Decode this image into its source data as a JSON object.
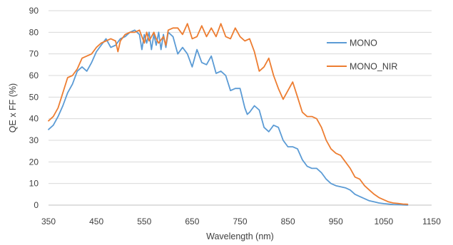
{
  "chart_data": {
    "type": "line",
    "title": "",
    "xlabel": "Wavelength (nm)",
    "ylabel": "QE x FF (%)",
    "xlim": [
      350,
      1150
    ],
    "ylim": [
      0,
      90
    ],
    "x_ticks": [
      350,
      450,
      550,
      650,
      750,
      850,
      950,
      1050,
      1150
    ],
    "y_ticks": [
      0,
      10,
      20,
      30,
      40,
      50,
      60,
      70,
      80,
      90
    ],
    "grid": "horizontal",
    "legend_position": "right",
    "series": [
      {
        "name": "MONO",
        "color": "#5b9bd5",
        "points": [
          [
            350,
            35
          ],
          [
            360,
            37
          ],
          [
            370,
            41
          ],
          [
            380,
            46
          ],
          [
            390,
            52
          ],
          [
            400,
            56
          ],
          [
            410,
            62
          ],
          [
            420,
            64
          ],
          [
            430,
            62
          ],
          [
            440,
            66
          ],
          [
            450,
            71
          ],
          [
            460,
            74
          ],
          [
            470,
            77
          ],
          [
            480,
            73
          ],
          [
            490,
            74
          ],
          [
            500,
            77
          ],
          [
            510,
            78
          ],
          [
            520,
            80
          ],
          [
            530,
            81
          ],
          [
            540,
            79
          ],
          [
            545,
            72
          ],
          [
            550,
            79
          ],
          [
            555,
            75
          ],
          [
            560,
            80
          ],
          [
            565,
            72
          ],
          [
            570,
            79
          ],
          [
            575,
            74
          ],
          [
            580,
            80
          ],
          [
            585,
            72
          ],
          [
            590,
            79
          ],
          [
            595,
            73
          ],
          [
            600,
            80
          ],
          [
            610,
            78
          ],
          [
            620,
            70
          ],
          [
            630,
            73
          ],
          [
            640,
            70
          ],
          [
            650,
            64
          ],
          [
            660,
            72
          ],
          [
            670,
            66
          ],
          [
            680,
            65
          ],
          [
            690,
            69
          ],
          [
            700,
            61
          ],
          [
            710,
            62
          ],
          [
            720,
            60
          ],
          [
            730,
            53
          ],
          [
            740,
            54
          ],
          [
            750,
            54
          ],
          [
            760,
            45
          ],
          [
            765,
            42
          ],
          [
            770,
            43
          ],
          [
            780,
            46
          ],
          [
            790,
            44
          ],
          [
            800,
            36
          ],
          [
            810,
            34
          ],
          [
            820,
            37
          ],
          [
            830,
            36
          ],
          [
            840,
            30
          ],
          [
            850,
            27
          ],
          [
            860,
            27
          ],
          [
            870,
            26
          ],
          [
            880,
            21
          ],
          [
            890,
            18
          ],
          [
            900,
            17
          ],
          [
            910,
            17
          ],
          [
            920,
            15
          ],
          [
            930,
            12
          ],
          [
            940,
            10
          ],
          [
            950,
            9
          ],
          [
            960,
            8.5
          ],
          [
            970,
            8
          ],
          [
            980,
            7
          ],
          [
            990,
            5
          ],
          [
            1000,
            4
          ],
          [
            1010,
            3
          ],
          [
            1020,
            2
          ],
          [
            1030,
            1.5
          ],
          [
            1040,
            1
          ],
          [
            1050,
            0.7
          ],
          [
            1060,
            0.5
          ],
          [
            1070,
            0.3
          ],
          [
            1080,
            0.2
          ],
          [
            1090,
            0.1
          ],
          [
            1100,
            0
          ]
        ]
      },
      {
        "name": "MONO_NIR",
        "color": "#ed7d31",
        "points": [
          [
            350,
            39
          ],
          [
            360,
            41
          ],
          [
            370,
            45
          ],
          [
            380,
            52
          ],
          [
            390,
            59
          ],
          [
            400,
            60
          ],
          [
            410,
            63
          ],
          [
            420,
            68
          ],
          [
            430,
            69
          ],
          [
            440,
            70
          ],
          [
            450,
            73
          ],
          [
            460,
            75
          ],
          [
            470,
            76
          ],
          [
            480,
            77
          ],
          [
            490,
            76
          ],
          [
            495,
            71
          ],
          [
            500,
            76
          ],
          [
            510,
            79
          ],
          [
            520,
            80
          ],
          [
            530,
            80
          ],
          [
            540,
            81
          ],
          [
            545,
            78
          ],
          [
            550,
            75
          ],
          [
            555,
            80
          ],
          [
            560,
            76
          ],
          [
            570,
            80
          ],
          [
            575,
            77
          ],
          [
            580,
            75
          ],
          [
            590,
            78
          ],
          [
            595,
            74
          ],
          [
            600,
            81
          ],
          [
            610,
            82
          ],
          [
            620,
            82
          ],
          [
            630,
            79
          ],
          [
            640,
            84
          ],
          [
            650,
            77
          ],
          [
            660,
            78
          ],
          [
            670,
            83
          ],
          [
            680,
            78
          ],
          [
            690,
            82
          ],
          [
            700,
            78
          ],
          [
            710,
            84
          ],
          [
            720,
            78
          ],
          [
            730,
            77
          ],
          [
            740,
            82
          ],
          [
            750,
            78
          ],
          [
            760,
            76
          ],
          [
            770,
            77
          ],
          [
            780,
            71
          ],
          [
            790,
            62
          ],
          [
            800,
            64
          ],
          [
            810,
            68
          ],
          [
            820,
            60
          ],
          [
            830,
            54
          ],
          [
            840,
            49
          ],
          [
            850,
            53
          ],
          [
            860,
            57
          ],
          [
            870,
            50
          ],
          [
            880,
            43
          ],
          [
            890,
            41
          ],
          [
            900,
            41
          ],
          [
            910,
            40
          ],
          [
            920,
            36
          ],
          [
            930,
            30
          ],
          [
            940,
            26
          ],
          [
            950,
            24
          ],
          [
            960,
            23
          ],
          [
            970,
            20
          ],
          [
            980,
            17
          ],
          [
            990,
            13
          ],
          [
            1000,
            12
          ],
          [
            1010,
            9
          ],
          [
            1020,
            7
          ],
          [
            1030,
            5
          ],
          [
            1040,
            3.5
          ],
          [
            1050,
            2.5
          ],
          [
            1060,
            1.5
          ],
          [
            1070,
            1
          ],
          [
            1080,
            0.8
          ],
          [
            1090,
            0.5
          ],
          [
            1100,
            0.4
          ]
        ]
      }
    ]
  }
}
